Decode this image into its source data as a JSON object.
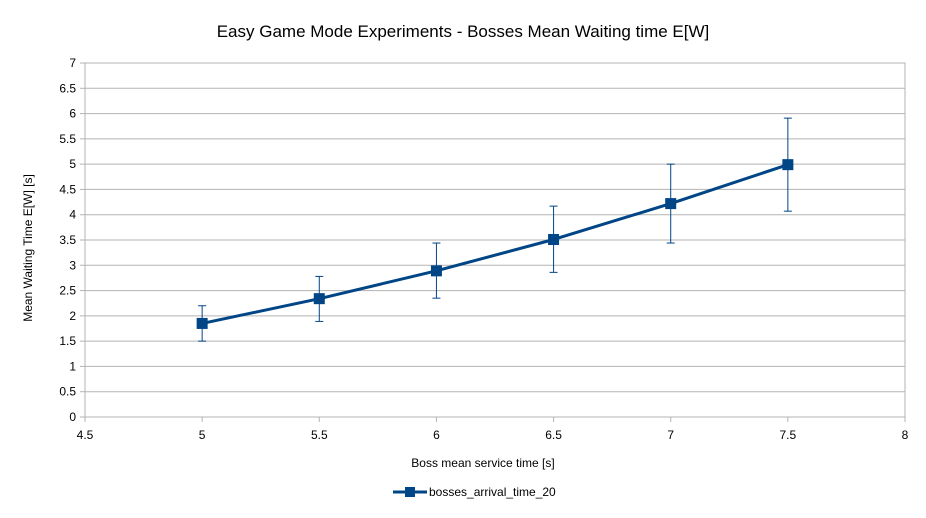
{
  "chart_data": {
    "type": "line",
    "title": "Easy Game Mode Experiments - Bosses Mean Waiting time E[W]",
    "xlabel": "Boss mean service time [s]",
    "ylabel": "Mean Waiting Time E[W] [s]",
    "xlim": [
      4.5,
      8
    ],
    "ylim": [
      0,
      7
    ],
    "x_ticks": [
      "4.5",
      "5",
      "5.5",
      "6",
      "6.5",
      "7",
      "7.5",
      "8"
    ],
    "y_ticks": [
      "0",
      "0.5",
      "1",
      "1.5",
      "2",
      "2.5",
      "3",
      "3.5",
      "4",
      "4.5",
      "5",
      "5.5",
      "6",
      "6.5",
      "7"
    ],
    "grid": "horizontal",
    "legend_position": "bottom",
    "series": [
      {
        "name": "bosses_arrival_time_20",
        "color": "#004586",
        "marker": "square",
        "points": [
          {
            "x": 5.0,
            "y": 1.85,
            "err_low": 1.5,
            "err_high": 2.2
          },
          {
            "x": 5.5,
            "y": 2.34,
            "err_low": 1.89,
            "err_high": 2.78
          },
          {
            "x": 6.0,
            "y": 2.89,
            "err_low": 2.35,
            "err_high": 3.44
          },
          {
            "x": 6.5,
            "y": 3.51,
            "err_low": 2.86,
            "err_high": 4.17
          },
          {
            "x": 7.0,
            "y": 4.22,
            "err_low": 3.44,
            "err_high": 5.0
          },
          {
            "x": 7.5,
            "y": 4.99,
            "err_low": 4.07,
            "err_high": 5.91
          }
        ]
      }
    ]
  }
}
